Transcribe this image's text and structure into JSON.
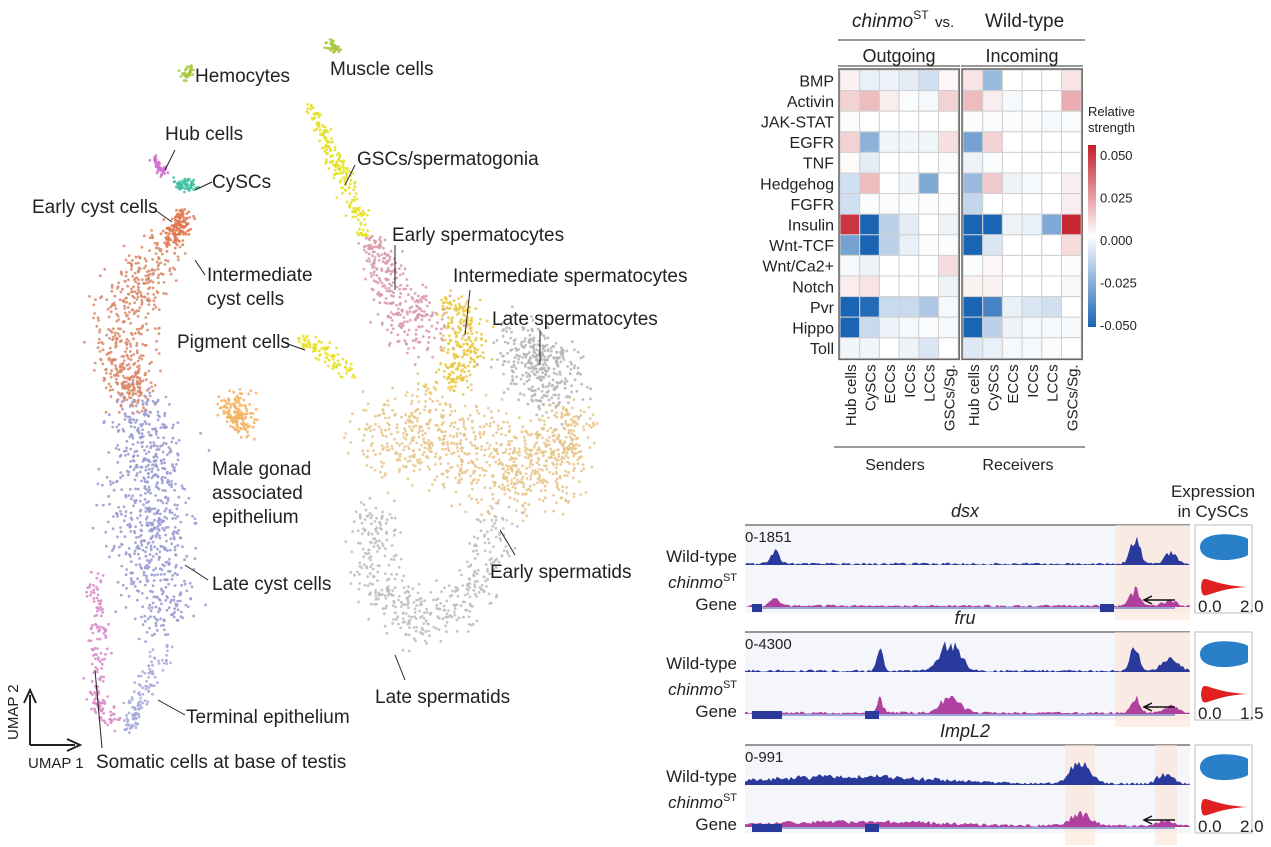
{
  "umap": {
    "axis_x": "UMAP 1",
    "axis_y": "UMAP 2",
    "clusters": [
      {
        "name": "Hemocytes",
        "color": "#a8c83c"
      },
      {
        "name": "Muscle cells",
        "color": "#a8c83c"
      },
      {
        "name": "Hub cells",
        "color": "#d070d0"
      },
      {
        "name": "CySCs",
        "color": "#40c0a0"
      },
      {
        "name": "Early cyst cells",
        "color": "#e07850"
      },
      {
        "name": "Intermediate cyst cells",
        "color": "#d88868"
      },
      {
        "name": "GSCs/spermatogonia",
        "color": "#e4e020"
      },
      {
        "name": "Early spermatocytes",
        "color": "#d898a8"
      },
      {
        "name": "Intermediate spermatocytes",
        "color": "#e8c840"
      },
      {
        "name": "Late spermatocytes",
        "color": "#b4b4b4"
      },
      {
        "name": "Pigment cells",
        "color": "#e8e020"
      },
      {
        "name": "Male gonad associated epithelium",
        "color": "#f4b060"
      },
      {
        "name": "Late cyst cells",
        "color": "#9898d0"
      },
      {
        "name": "Early spermatids",
        "color": "#e8c488"
      },
      {
        "name": "Terminal epithelium",
        "color": "#a8a8dc"
      },
      {
        "name": "Late spermatids",
        "color": "#bcbcbc"
      },
      {
        "name": "Somatic cells at base of testis",
        "color": "#d888c8"
      }
    ]
  },
  "chart_data": [
    {
      "type": "heatmap",
      "title_italic": "chinmo",
      "title_sup": "ST",
      "title_vs": "vs.",
      "title_wt": "Wild-type",
      "groups": [
        "Outgoing",
        "Incoming"
      ],
      "group_axis": [
        "Senders",
        "Receivers"
      ],
      "rows": [
        "BMP",
        "Activin",
        "JAK-STAT",
        "EGFR",
        "TNF",
        "Hedgehog",
        "FGFR",
        "Insulin",
        "Wnt-TCF",
        "Wnt/Ca2+",
        "Notch",
        "Pvr",
        "Hippo",
        "Toll"
      ],
      "columns": [
        "Hub cells",
        "CySCs",
        "ECCs",
        "ICCs",
        "LCCs",
        "GSCs/Sg."
      ],
      "legend_title": [
        "Relative",
        "strength"
      ],
      "scale": [
        -0.05,
        0.05
      ],
      "scale_ticks": [
        "0.050",
        "0.025",
        "0.000",
        "-0.025",
        "-0.050"
      ],
      "colors": {
        "neg": "#1a64b4",
        "mid": "#ffffff",
        "pos": "#c41e2a"
      },
      "outgoing": [
        [
          0.003,
          -0.005,
          -0.004,
          -0.006,
          -0.01,
          0.002
        ],
        [
          0.01,
          0.015,
          0.004,
          -0.001,
          -0.002,
          0.01
        ],
        [
          0.001,
          0,
          0,
          0,
          0,
          0
        ],
        [
          0.01,
          -0.025,
          -0.003,
          -0.003,
          -0.003,
          0.007
        ],
        [
          0.001,
          -0.006,
          0,
          0,
          0,
          0.001
        ],
        [
          -0.01,
          0.015,
          0,
          -0.003,
          -0.028,
          0
        ],
        [
          -0.01,
          -0.001,
          -0.001,
          -0.001,
          -0.001,
          -0.001
        ],
        [
          0.045,
          -0.05,
          -0.015,
          -0.006,
          0,
          -0.004
        ],
        [
          -0.03,
          -0.05,
          -0.015,
          -0.005,
          -0.001,
          -0.001
        ],
        [
          -0.002,
          -0.004,
          0,
          0,
          0,
          0.008
        ],
        [
          0.004,
          0.006,
          0,
          0,
          0,
          -0.004
        ],
        [
          -0.05,
          -0.048,
          -0.012,
          -0.012,
          -0.018,
          -0.002
        ],
        [
          -0.05,
          -0.012,
          -0.004,
          -0.002,
          -0.001,
          -0.002
        ],
        [
          -0.003,
          -0.003,
          0,
          -0.004,
          -0.008,
          0
        ]
      ],
      "incoming": [
        [
          0.006,
          -0.022,
          0,
          0,
          0,
          0.006
        ],
        [
          0.015,
          0.004,
          -0.002,
          0,
          0,
          0.018
        ],
        [
          -0.001,
          -0.001,
          -0.001,
          -0.001,
          -0.002,
          -0.001
        ],
        [
          -0.03,
          0.01,
          0,
          0,
          0,
          0
        ],
        [
          -0.004,
          -0.001,
          0,
          0,
          0,
          0
        ],
        [
          -0.022,
          0.012,
          -0.004,
          -0.002,
          0,
          0.004
        ],
        [
          -0.013,
          0,
          0,
          0,
          0,
          0.004
        ],
        [
          -0.05,
          -0.05,
          -0.004,
          -0.005,
          -0.028,
          0.048
        ],
        [
          -0.05,
          -0.008,
          0,
          0,
          0,
          0.008
        ],
        [
          -0.001,
          0.002,
          0,
          0,
          0,
          -0.001
        ],
        [
          0.003,
          0.003,
          0,
          0,
          0,
          -0.002
        ],
        [
          -0.05,
          -0.04,
          -0.005,
          -0.008,
          -0.01,
          0
        ],
        [
          -0.05,
          -0.015,
          -0.004,
          -0.002,
          -0.002,
          -0.002
        ],
        [
          -0.007,
          -0.005,
          -0.002,
          -0.002,
          -0.001,
          0
        ]
      ]
    }
  ],
  "tracks": {
    "expression_title": [
      "Expression",
      "in CySCs"
    ],
    "wt_label": "Wild-type",
    "mut_italic": "chinmo",
    "mut_sup": "ST",
    "gene_label": "Gene",
    "wt_color": "#2a3a9c",
    "mut_color": "#b040a0",
    "violin_wt_color": "#2a80c8",
    "violin_mut_color": "#e02020",
    "genes": [
      {
        "name": "dsx",
        "range": "0-1851",
        "violin_axis": [
          "0.0",
          "2.0"
        ]
      },
      {
        "name": "fru",
        "range": "0-4300",
        "violin_axis": [
          "0.0",
          "1.5"
        ]
      },
      {
        "name": "ImpL2",
        "range": "0-991",
        "violin_axis": [
          "0.0",
          "2.0"
        ]
      }
    ]
  }
}
